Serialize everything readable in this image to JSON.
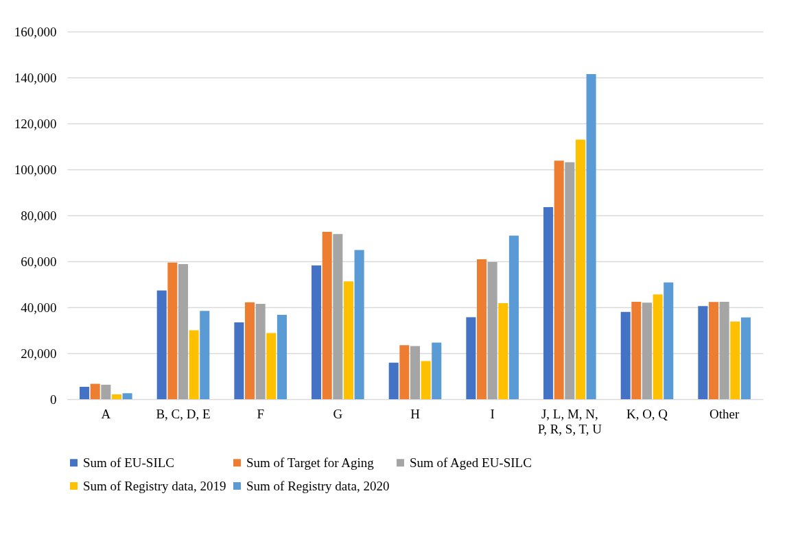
{
  "chart_data": {
    "type": "bar",
    "categories": [
      "A",
      "B, C, D, E",
      "F",
      "G",
      "H",
      "I",
      "J, L, M, N, P, R, S, T, U",
      "K, O, Q",
      "Other"
    ],
    "series": [
      {
        "name": "Sum of EU-SILC",
        "color": "#4472c4",
        "values": [
          5400,
          47300,
          33400,
          58200,
          15900,
          35700,
          83600,
          38000,
          40500
        ]
      },
      {
        "name": "Sum of Target for Aging",
        "color": "#ed7d31",
        "values": [
          6700,
          59500,
          42200,
          72800,
          23500,
          60900,
          103800,
          42400,
          42300
        ]
      },
      {
        "name": "Sum of Aged EU-SILC",
        "color": "#a5a5a5",
        "values": [
          6300,
          58800,
          41500,
          71900,
          23100,
          59700,
          103100,
          42000,
          42400
        ]
      },
      {
        "name": "Sum of Registry data, 2019",
        "color": "#ffc000",
        "values": [
          2100,
          30000,
          28800,
          51300,
          16600,
          41800,
          113000,
          45600,
          33800
        ]
      },
      {
        "name": "Sum of Registry data, 2020",
        "color": "#5b9bd5",
        "values": [
          2600,
          38400,
          36700,
          64900,
          24600,
          71200,
          141500,
          50800,
          35600
        ]
      }
    ],
    "ylim": [
      0,
      160000
    ],
    "yticks": [
      0,
      {
        "value": 20000,
        "label": "20,000"
      },
      {
        "value": 40000,
        "label": "40,000"
      },
      {
        "value": 60000,
        "label": "60,000"
      },
      {
        "value": 80000,
        "label": "80,000"
      },
      {
        "value": 100000,
        "label": "100,000"
      },
      {
        "value": 120000,
        "label": "120,000"
      },
      {
        "value": 140000,
        "label": "140,000"
      },
      {
        "value": 160000,
        "label": "160,000"
      }
    ],
    "grid": "y",
    "legend": "bottom"
  }
}
